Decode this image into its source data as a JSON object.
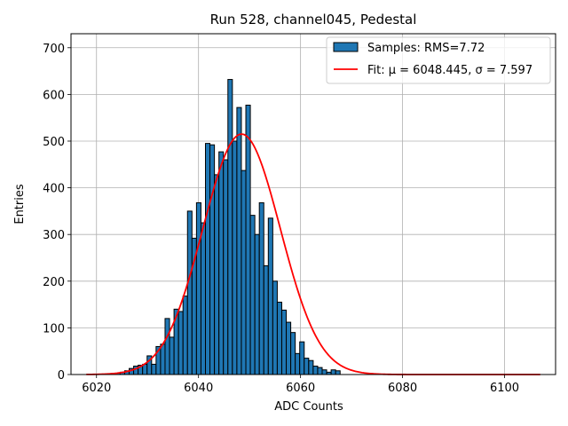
{
  "chart_data": {
    "type": "bar",
    "title": "Run 528, channel045, Pedestal",
    "xlabel": "ADC Counts",
    "ylabel": "Entries",
    "xlim": [
      6015,
      6110
    ],
    "ylim": [
      0,
      730
    ],
    "xticks": [
      6020,
      6040,
      6060,
      6080,
      6100
    ],
    "yticks": [
      0,
      100,
      200,
      300,
      400,
      500,
      600,
      700
    ],
    "grid": true,
    "legend_position": "top-right",
    "histogram": {
      "name": "Samples: RMS=7.72",
      "color": "#1f77b4",
      "edge_color": "#000000",
      "bin_start": 6022.0,
      "bin_width": 0.88,
      "counts": [
        1,
        2,
        3,
        5,
        8,
        13,
        18,
        20,
        22,
        40,
        22,
        60,
        65,
        120,
        80,
        140,
        135,
        168,
        350,
        292,
        368,
        325,
        495,
        492,
        428,
        477,
        460,
        632,
        500,
        572,
        437,
        577,
        341,
        300,
        368,
        233,
        335,
        200,
        155,
        138,
        112,
        90,
        45,
        70,
        35,
        30,
        18,
        15,
        10,
        5,
        10,
        8
      ]
    },
    "fit": {
      "name": "Fit: μ = 6048.445, σ = 7.597",
      "color": "#ff0000",
      "mu": 6048.445,
      "sigma": 7.597,
      "amplitude": 515,
      "x_range": [
        6018,
        6107
      ]
    }
  }
}
